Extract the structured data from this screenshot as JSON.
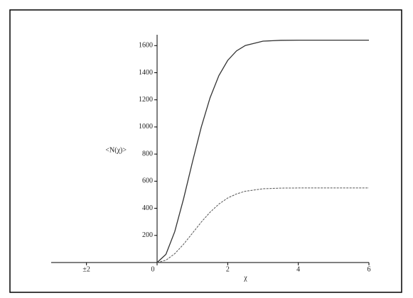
{
  "chart_data": {
    "type": "line",
    "xlabel": "χ",
    "ylabel": "<N(χ)>",
    "x": [
      0,
      0.25,
      0.5,
      0.75,
      1,
      1.25,
      1.5,
      1.75,
      2,
      2.25,
      2.5,
      3,
      3.5,
      4,
      5,
      6
    ],
    "series": [
      {
        "color": "#333333",
        "dash": false,
        "values": [
          0,
          60,
          228,
          470,
          740,
          998,
          1215,
          1379,
          1491,
          1561,
          1601,
          1633,
          1639,
          1640,
          1640,
          1640
        ]
      },
      {
        "color": "#555555",
        "dash": true,
        "values": [
          0,
          17,
          65,
          135,
          216,
          298,
          371,
          431,
          476,
          506,
          526,
          544,
          549,
          550,
          550,
          550
        ]
      }
    ],
    "xlim": [
      -3,
      6
    ],
    "ylim": [
      0,
      1680
    ],
    "xticks": [
      {
        "value": -2,
        "label": "±2"
      },
      0,
      2,
      4,
      6
    ],
    "yticks": [
      200,
      400,
      600,
      800,
      1000,
      1200,
      1400,
      1600
    ]
  }
}
